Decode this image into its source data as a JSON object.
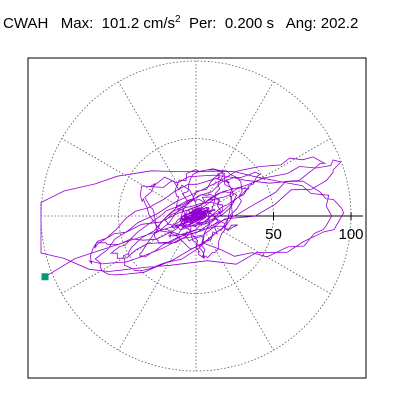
{
  "header": {
    "station": "CWAH",
    "max_label": "Max:",
    "max_value": "101.2",
    "max_unit": "cm/s",
    "max_unit_exp": "2",
    "per_label": "Per:",
    "per_value": "0.200",
    "per_unit": "s",
    "ang_label": "Ang:",
    "ang_value": "202.2"
  },
  "chart_data": {
    "type": "polar-orbit",
    "rings": [
      50,
      100
    ],
    "radial_tick_labels": [
      "50",
      "100"
    ],
    "spoke_step_deg": 30,
    "grid": true,
    "r_max": 100,
    "trace_color": "#9400d3",
    "marker_color": "#009b77",
    "end_marker": {
      "x": -97.4,
      "y": -39.2
    },
    "trace_envelope": {
      "major_axis": 101.2,
      "minor_axis": 40,
      "orientation_deg": 22.2
    }
  }
}
